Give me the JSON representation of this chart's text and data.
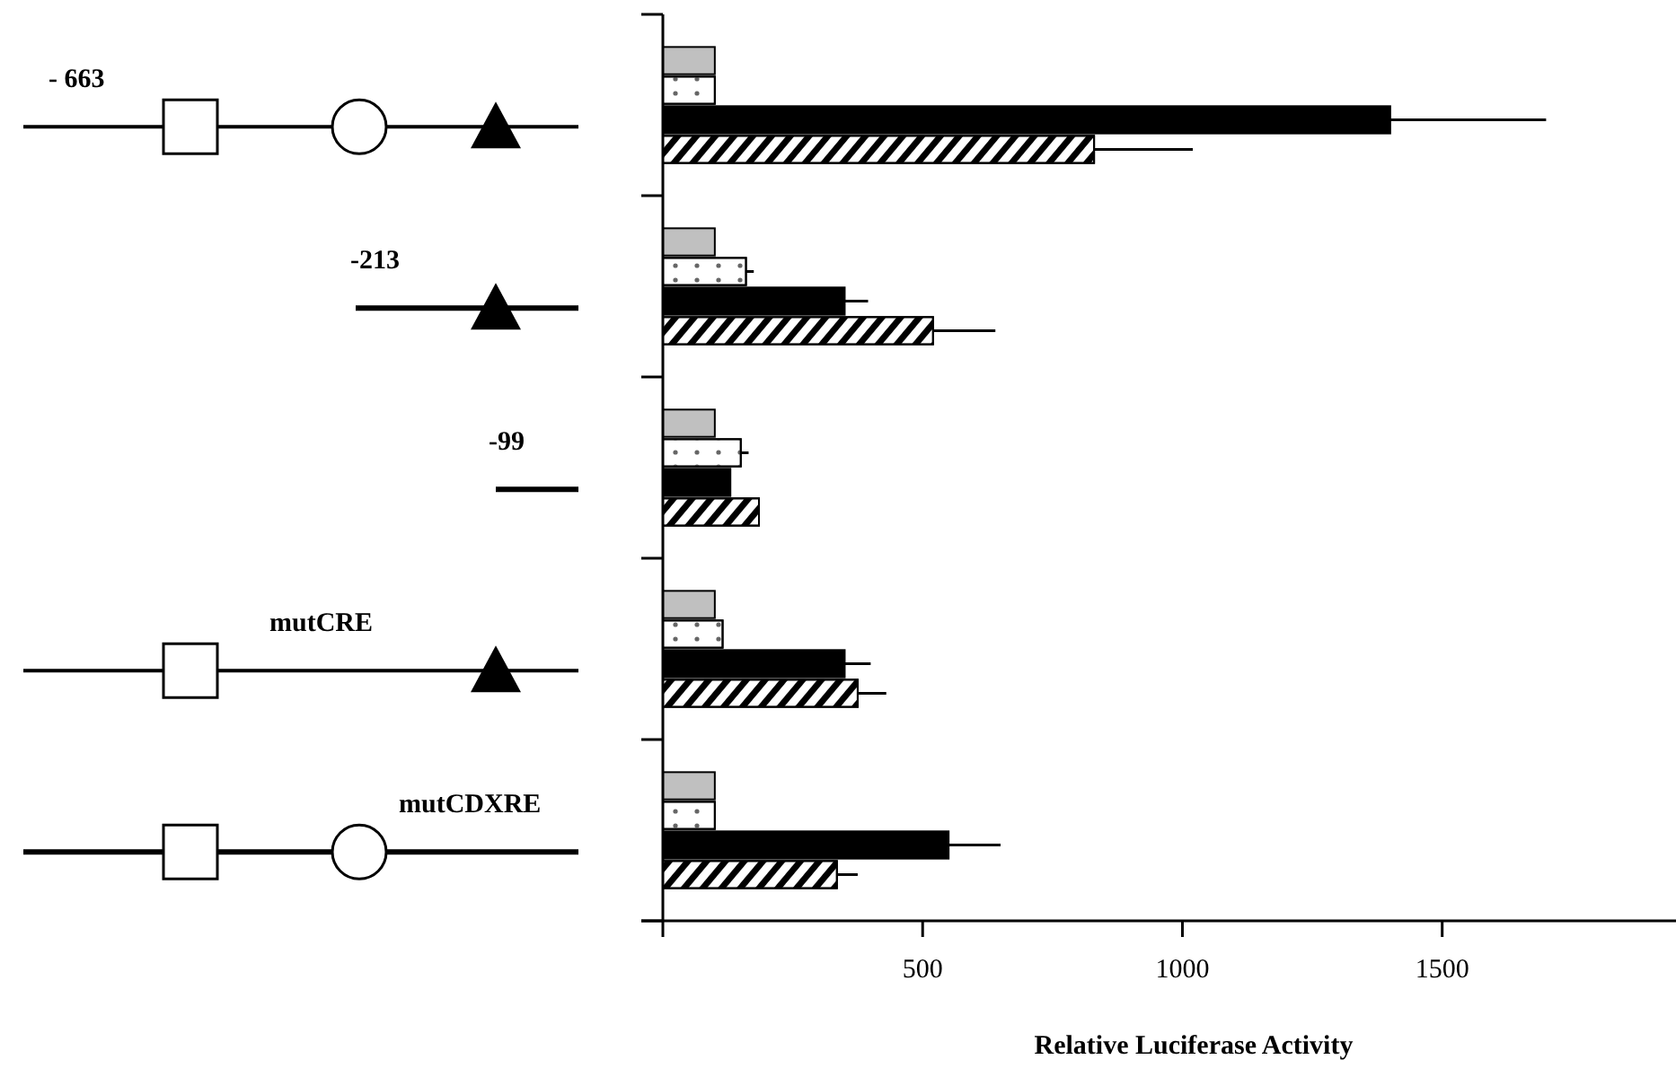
{
  "chart_data": {
    "type": "bar",
    "orientation": "horizontal",
    "xlabel": "Relative Luciferase Activity",
    "categories": [
      null,
      null,
      null,
      null,
      null
    ],
    "annotations": [
      "- 663",
      "-213",
      "-99",
      "mutCRE",
      "mutCDXRE"
    ],
    "series": [
      {
        "color": "#c0c0c0",
        "values": [
          100,
          100,
          100,
          100,
          100
        ]
      },
      {
        "color": "#ffffff",
        "values": [
          100,
          160,
          150,
          115,
          100
        ],
        "errors": [
          null,
          15,
          15,
          null,
          null
        ]
      },
      {
        "color": "#000000",
        "values": [
          1400,
          350,
          130,
          350,
          550
        ],
        "errors": [
          300,
          45,
          null,
          50,
          100
        ]
      },
      {
        "color": "#ffffff",
        "values": [
          830,
          520,
          185,
          375,
          335
        ],
        "errors": [
          190,
          120,
          null,
          55,
          40
        ]
      }
    ],
    "xlim": [
      0,
      1950
    ],
    "xticks": [
      {
        "value": 0,
        "label": null
      },
      500,
      1000,
      1500
    ]
  }
}
